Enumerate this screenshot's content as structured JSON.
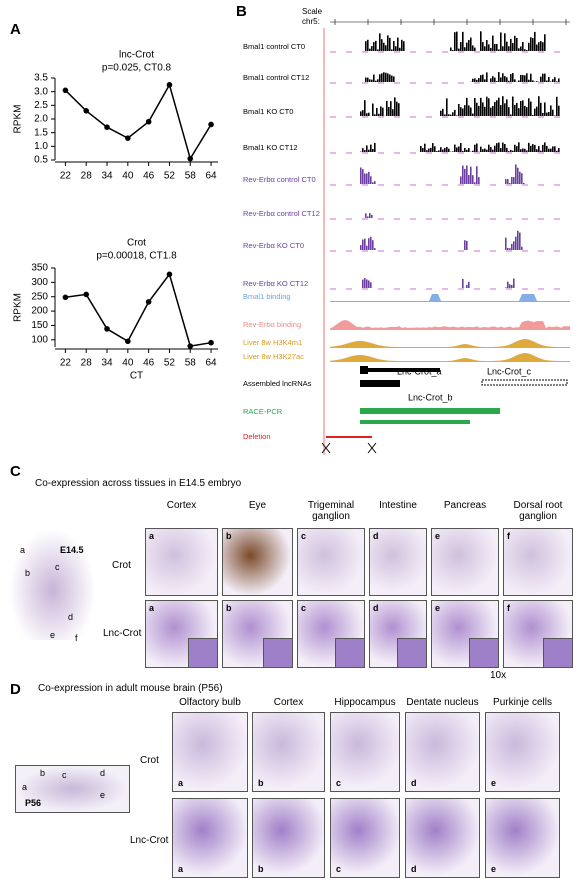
{
  "labels": {
    "a": "A",
    "b": "B",
    "c": "C",
    "d": "D"
  },
  "chart_data": [
    {
      "type": "line",
      "title": "lnc-Crot",
      "subtitle": "p=0.025, CT0.8",
      "y_label": "RPKM",
      "x": [
        22,
        28,
        34,
        40,
        46,
        52,
        58,
        64
      ],
      "values": [
        3.05,
        2.3,
        1.7,
        1.3,
        1.9,
        3.25,
        0.55,
        1.8
      ],
      "color": "#000000",
      "xlim": [
        19,
        66
      ],
      "xticks": [
        22,
        28,
        34,
        40,
        46,
        52,
        58,
        64
      ],
      "ylim": [
        0.5,
        3.5
      ],
      "yticks": [
        {
          "value": 0.5,
          "label": "0.5"
        },
        {
          "value": 1,
          "label": "1.0"
        },
        {
          "value": 1.5,
          "label": "1.5"
        },
        {
          "value": 2,
          "label": "2.0"
        },
        {
          "value": 2.5,
          "label": "2.5"
        },
        {
          "value": 3,
          "label": "3.0"
        },
        {
          "value": 3.5,
          "label": "3.5"
        }
      ]
    },
    {
      "type": "line",
      "title": "Crot",
      "subtitle": "p=0.00018, CT1.8",
      "y_label": "RPKM",
      "x_label": "CT",
      "x": [
        22,
        28,
        34,
        40,
        46,
        52,
        58,
        64
      ],
      "values": [
        248,
        258,
        138,
        95,
        232,
        328,
        78,
        90
      ],
      "color": "#000000",
      "xlim": [
        19,
        66
      ],
      "xticks": [
        22,
        28,
        34,
        40,
        46,
        52,
        58,
        64
      ],
      "ylim": [
        75,
        350
      ],
      "yticks": [
        100,
        150,
        200,
        250,
        300,
        350
      ]
    }
  ],
  "browser": {
    "scale": "Scale",
    "chrom": "chr5:",
    "tracks": [
      {
        "name": "Bmal1 control CT0",
        "color": "#000000"
      },
      {
        "name": "Bmal1 control CT12",
        "color": "#000000"
      },
      {
        "name": "Bmal1 KO CT0",
        "color": "#000000"
      },
      {
        "name": "Bmal1 KO CT12",
        "color": "#000000"
      },
      {
        "name": "Rev-Erbα control CT0",
        "color": "#6a3fa0"
      },
      {
        "name": "Rev-Erbα control CT12",
        "color": "#6a3fa0"
      },
      {
        "name": "Rev-Erbα KO CT0",
        "color": "#6a3fa0"
      },
      {
        "name": "Rev-Erbα KO CT12",
        "color": "#6a3fa0"
      },
      {
        "name": "Bmal1 binding",
        "color": "#6fa0e0"
      },
      {
        "name": "Rev-Erbα binding",
        "color": "#f08a8a"
      },
      {
        "name": "Liver 8w H3K4m1",
        "color": "#d99a1a"
      },
      {
        "name": "Liver 8w H3K27ac",
        "color": "#d99a1a"
      },
      {
        "name": "Assembled lncRNAs",
        "color": "#000000"
      },
      {
        "name": "RACE-PCR",
        "color": "#2aa84a"
      },
      {
        "name": "Deletion",
        "color": "#e02020"
      }
    ],
    "transcripts": [
      "Lnc-Crot_a",
      "Lnc-Crot_c",
      "Lnc-Crot_b"
    ]
  },
  "embryo": {
    "title": "Co-expression across tissues in E14.5 embryo",
    "stage": "E14.5",
    "columns": [
      "Cortex",
      "Eye",
      "Trigeminal ganglion",
      "Intestine",
      "Pancreas",
      "Dorsal root ganglion"
    ],
    "rows": [
      "Crot",
      "Lnc-Crot"
    ],
    "letters": [
      "a",
      "b",
      "c",
      "d",
      "e",
      "f"
    ],
    "magnification": "10x"
  },
  "brain": {
    "title": "Co-expression in adult mouse brain (P56)",
    "stage": "P56",
    "columns": [
      "Olfactory bulb",
      "Cortex",
      "Hippocampus",
      "Dentate nucleus",
      "Purkinje cells"
    ],
    "rows": [
      "Crot",
      "Lnc-Crot"
    ],
    "letters": [
      "a",
      "b",
      "c",
      "d",
      "e"
    ]
  }
}
